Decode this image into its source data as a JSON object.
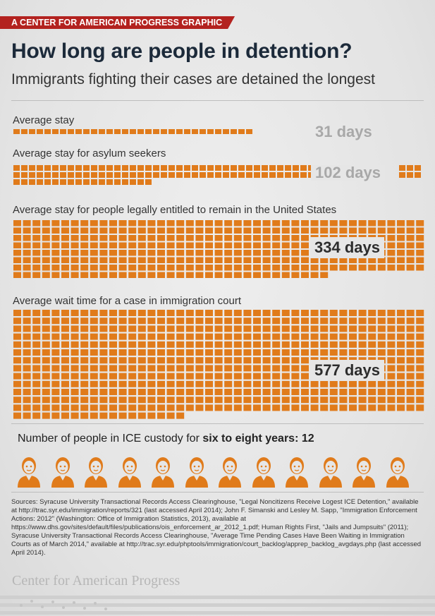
{
  "header": {
    "tag": "A CENTER FOR AMERICAN PROGRESS GRAPHIC",
    "title": "How long are people in detention?",
    "subtitle": "Immigrants fighting their cases are detained the longest"
  },
  "chart_data": {
    "type": "waffle",
    "unit": "1 square = 1 day",
    "series": [
      {
        "name": "Average stay",
        "value": 31,
        "label": "31 days"
      },
      {
        "name": "Average stay for asylum seekers",
        "value": 102,
        "label": "102 days"
      },
      {
        "name": "Average stay for people legally entitled to remain in the United States",
        "value": 334,
        "label": "334 days"
      },
      {
        "name": "Average wait time for a case in immigration court",
        "value": 577,
        "label": "577 days"
      }
    ]
  },
  "custody": {
    "prefix": "Number of people in ICE custody for ",
    "emphasis": "six to eight years",
    "suffix": ": 12",
    "count": 12
  },
  "sources": "Sources: Syracuse University Transactional Records Access Clearinghouse, \"Legal Noncitizens Receive Logest ICE Detention,\" available at http://trac.syr.edu/immigration/reports/321 (last accessed April 2014); John F. Simanski and Lesley M. Sapp, \"Immigration Enforcement Actions: 2012\" (Washington: Office of Immigration Statistics, 2013), available at https://www.dhs.gov/sites/default/files/publications/ois_enforcement_ar_2012_1.pdf; Human Rights First, \"Jails and Jumpsuits\" (2011); Syracuse University Transactional Records Access Clearinghouse, \"Average Time Pending Cases Have Been Waiting in Immigration Courts as of March 2014,\" available at http://trac.syr.edu/phptools/immigration/court_backlog/apprep_backlog_avgdays.php (last accessed April 2014).",
  "footer": {
    "logo": "Center for American Progress"
  },
  "colors": {
    "accent": "#e07b1b",
    "tag_red": "#b3221f",
    "title_navy": "#1c2a3a",
    "value_grey": "#a8a8a8"
  },
  "icons": {
    "person": "person-icon"
  }
}
